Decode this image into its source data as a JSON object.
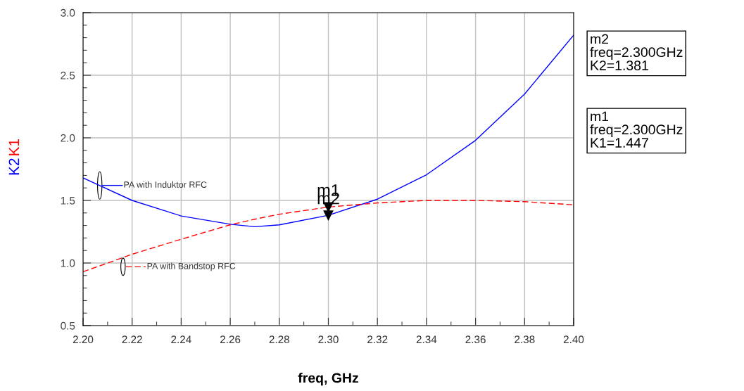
{
  "chart_data": {
    "type": "line",
    "xlabel": "freq, GHz",
    "ylabel": "K2 K1",
    "x": [
      2.2,
      2.22,
      2.24,
      2.26,
      2.27,
      2.28,
      2.3,
      2.32,
      2.34,
      2.36,
      2.38,
      2.4
    ],
    "series": [
      {
        "name": "PA with Induktor RFC",
        "color": "#0000ff",
        "line_style": "solid",
        "values": [
          1.68,
          1.5,
          1.376,
          1.31,
          1.29,
          1.305,
          1.381,
          1.51,
          1.705,
          1.98,
          2.35,
          2.82
        ]
      },
      {
        "name": "PA with Bandstop RFC",
        "color": "#ff0000",
        "line_style": "dashed",
        "values": [
          0.93,
          1.07,
          1.19,
          1.305,
          1.35,
          1.39,
          1.447,
          1.48,
          1.5,
          1.5,
          1.49,
          1.465
        ]
      }
    ],
    "xlim": [
      2.2,
      2.4
    ],
    "xticks": [
      {
        "value": 2.2,
        "label": "2.20"
      },
      {
        "value": 2.22,
        "label": "2.22"
      },
      {
        "value": 2.24,
        "label": "2.24"
      },
      {
        "value": 2.26,
        "label": "2.26"
      },
      {
        "value": 2.28,
        "label": "2.28"
      },
      {
        "value": 2.3,
        "label": "2.30"
      },
      {
        "value": 2.32,
        "label": "2.32"
      },
      {
        "value": 2.34,
        "label": "2.34"
      },
      {
        "value": 2.36,
        "label": "2.36"
      },
      {
        "value": 2.38,
        "label": "2.38"
      },
      {
        "value": 2.4,
        "label": "2.40"
      }
    ],
    "ylim": [
      0.5,
      3.0
    ],
    "yticks": [
      0.5,
      {
        "value": 1.0,
        "label": "1.0"
      },
      1.5,
      {
        "value": 2.0,
        "label": "2.0"
      },
      2.5,
      {
        "value": 3.0,
        "label": "3.0"
      }
    ],
    "grid": true,
    "legend": "left",
    "annotations": [
      {
        "text": "m1",
        "x": 2.3,
        "y": 1.447
      },
      {
        "text": "m2",
        "x": 2.3,
        "y": 1.381
      },
      "m2\nfreq=2.300GHz\nK2=1.381",
      "m1\nfreq=2.300GHz\nK1=1.447"
    ]
  }
}
